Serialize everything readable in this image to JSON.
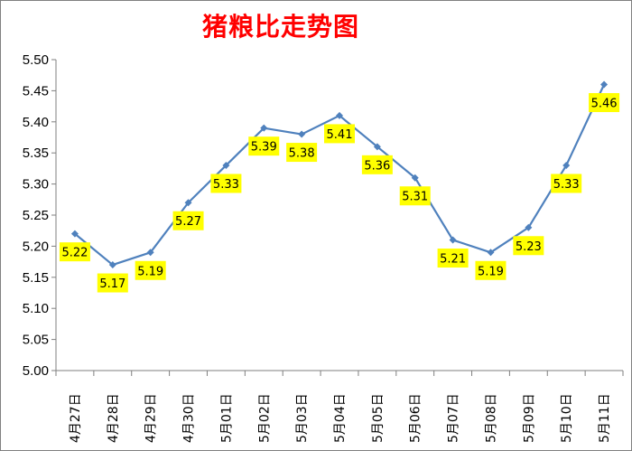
{
  "chart_data": {
    "type": "line",
    "title": "猪粮比走势图",
    "xlabel": "",
    "ylabel": "",
    "categories": [
      "4月27日",
      "4月28日",
      "4月29日",
      "4月30日",
      "5月01日",
      "5月02日",
      "5月03日",
      "5月04日",
      "5月05日",
      "5月06日",
      "5月07日",
      "5月08日",
      "5月09日",
      "5月10日",
      "5月11日"
    ],
    "values": [
      5.22,
      5.17,
      5.19,
      5.27,
      5.33,
      5.39,
      5.38,
      5.41,
      5.36,
      5.31,
      5.21,
      5.19,
      5.23,
      5.33,
      5.46
    ],
    "data_labels": [
      "5.22",
      "5.17",
      "5.19",
      "5.27",
      "5.33",
      "5.39",
      "5.38",
      "5.41",
      "5.36",
      "5.31",
      "5.21",
      "5.19",
      "5.23",
      "5.33",
      "5.46"
    ],
    "ylim": [
      5.0,
      5.5
    ],
    "yticks": [
      "5.00",
      "5.05",
      "5.10",
      "5.15",
      "5.20",
      "5.25",
      "5.30",
      "5.35",
      "5.40",
      "5.45",
      "5.50"
    ],
    "grid": false,
    "legend": "none",
    "colors": {
      "line": "#4f81bd",
      "label_bg": "#ffff00",
      "title": "#ff0000",
      "axis": "#7f7f7f"
    }
  }
}
